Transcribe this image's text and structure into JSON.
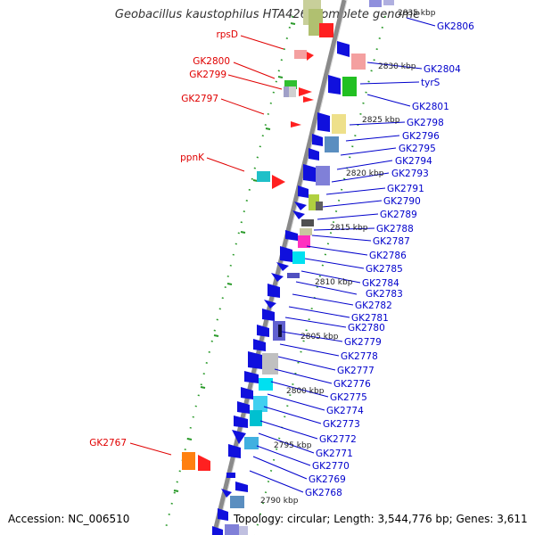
{
  "title": "Geobacillus kaustophilus HTA426, complete genome",
  "footer": {
    "accession": "Accession: NC_006510",
    "stats": "Topology: circular; Length: 3,544,776 bp; Genes: 3,611"
  },
  "colors": {
    "axis": "#888888",
    "ticks": "#2a9a2a",
    "label_minus": "#e00000",
    "label_plus": "#0000cc",
    "gene_default": "#1010dd"
  },
  "kbp_labels": [
    {
      "text": "2835 kbp"
    },
    {
      "text": "2830 kbp"
    },
    {
      "text": "2825 kbp"
    },
    {
      "text": "2820 kbp"
    },
    {
      "text": "2815 kbp"
    },
    {
      "text": "2810 kbp"
    },
    {
      "text": "2805 kbp"
    },
    {
      "text": "2800 kbp"
    },
    {
      "text": "2795 kbp"
    },
    {
      "text": "2790 kbp"
    }
  ],
  "left_labels": [
    {
      "text": "rpsD"
    },
    {
      "text": "GK2800"
    },
    {
      "text": "GK2799"
    },
    {
      "text": "GK2797"
    },
    {
      "text": "ppnK"
    },
    {
      "text": "GK2767"
    }
  ],
  "right_labels": [
    {
      "text": "GK2806"
    },
    {
      "text": "GK2804"
    },
    {
      "text": "tyrS"
    },
    {
      "text": "GK2801"
    },
    {
      "text": "GK2798"
    },
    {
      "text": "GK2796"
    },
    {
      "text": "GK2795"
    },
    {
      "text": "GK2794"
    },
    {
      "text": "GK2793"
    },
    {
      "text": "GK2791"
    },
    {
      "text": "GK2790"
    },
    {
      "text": "GK2789"
    },
    {
      "text": "GK2788"
    },
    {
      "text": "GK2787"
    },
    {
      "text": "GK2786"
    },
    {
      "text": "GK2785"
    },
    {
      "text": "GK2784"
    },
    {
      "text": "GK2783"
    },
    {
      "text": "GK2782"
    },
    {
      "text": "GK2781"
    },
    {
      "text": "GK2780"
    },
    {
      "text": "GK2779"
    },
    {
      "text": "GK2778"
    },
    {
      "text": "GK2777"
    },
    {
      "text": "GK2776"
    },
    {
      "text": "GK2775"
    },
    {
      "text": "GK2774"
    },
    {
      "text": "GK2773"
    },
    {
      "text": "GK2772"
    },
    {
      "text": "GK2771"
    },
    {
      "text": "GK2770"
    },
    {
      "text": "GK2769"
    },
    {
      "text": "GK2768"
    }
  ]
}
